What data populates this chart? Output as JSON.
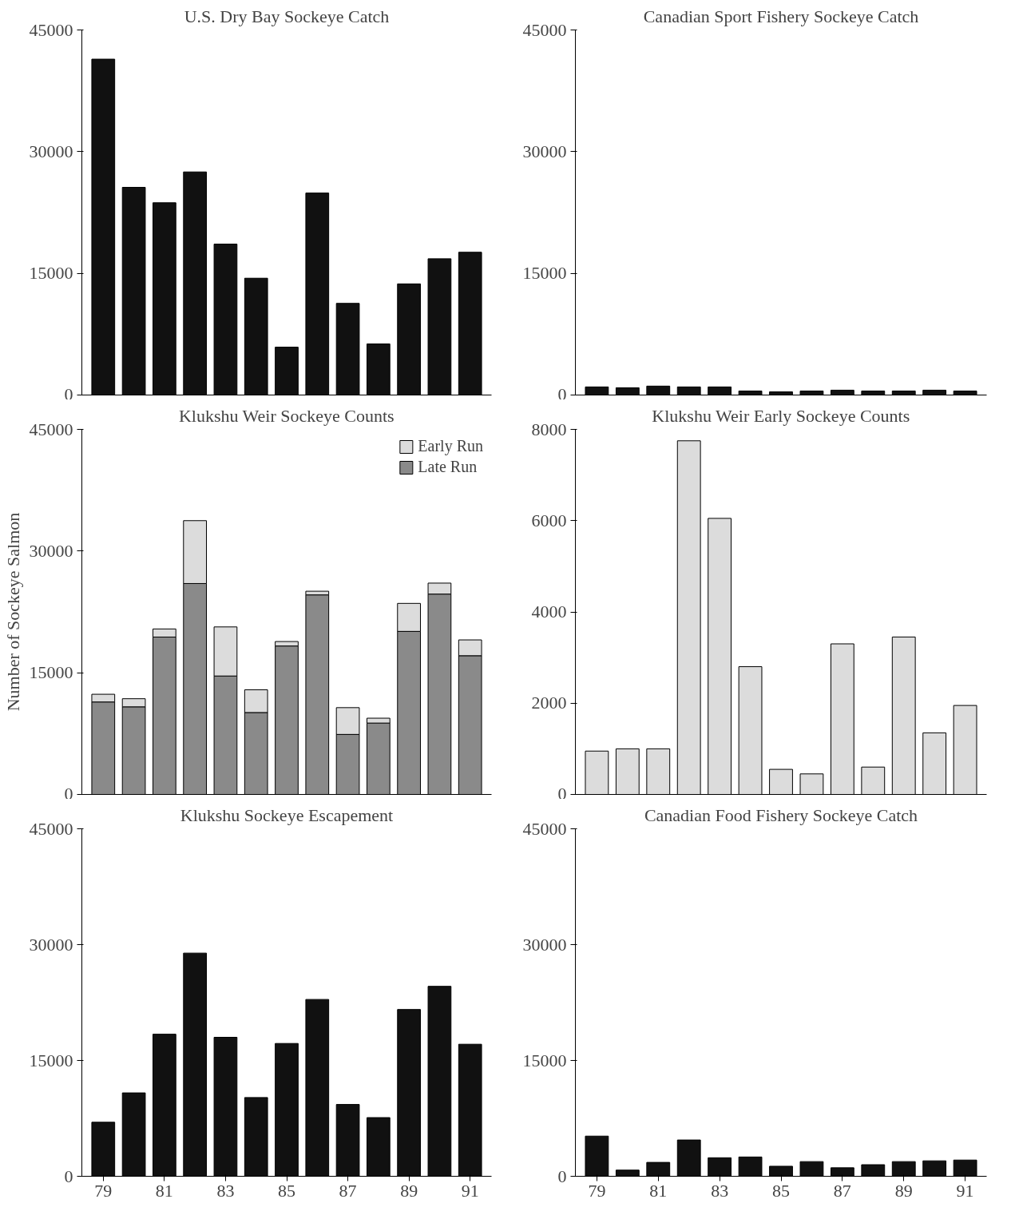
{
  "chart_data": [
    {
      "type": "bar",
      "title": "U.S. Dry Bay Sockeye Catch",
      "x": [
        79,
        80,
        81,
        82,
        83,
        84,
        85,
        86,
        87,
        88,
        89,
        90,
        91
      ],
      "xlim": [
        78.3,
        91.7
      ],
      "xticks": [
        79,
        81,
        83,
        85,
        87,
        89,
        91
      ],
      "ylim": [
        0,
        45000
      ],
      "yticks": [
        0,
        15000,
        30000,
        45000
      ],
      "tick_labels": "y",
      "values": [
        41400,
        25600,
        23700,
        27500,
        18600,
        14400,
        5900,
        24900,
        11300,
        6300,
        13700,
        16800,
        17600
      ],
      "color": "#111111"
    },
    {
      "type": "bar",
      "title": "Canadian Sport Fishery Sockeye Catch",
      "x": [
        79,
        80,
        81,
        82,
        83,
        84,
        85,
        86,
        87,
        88,
        89,
        90,
        91
      ],
      "xlim": [
        78.3,
        91.7
      ],
      "xticks": [
        79,
        81,
        83,
        85,
        87,
        89,
        91
      ],
      "ylim": [
        0,
        45000
      ],
      "yticks": [
        0,
        15000,
        30000,
        45000
      ],
      "tick_labels": "y",
      "values": [
        1000,
        900,
        1100,
        1000,
        1000,
        500,
        400,
        500,
        600,
        500,
        500,
        600,
        500
      ],
      "color": "#111111"
    },
    {
      "type": "bar",
      "title": "Klukshu Weir Sockeye Counts",
      "ylabel": "Number of Sockeye Salmon",
      "x": [
        79,
        80,
        81,
        82,
        83,
        84,
        85,
        86,
        87,
        88,
        89,
        90,
        91
      ],
      "xlim": [
        78.3,
        91.7
      ],
      "xticks": [
        79,
        81,
        83,
        85,
        87,
        89,
        91
      ],
      "ylim": [
        0,
        45000
      ],
      "yticks": [
        0,
        15000,
        30000,
        45000
      ],
      "tick_labels": "y",
      "stacked": true,
      "legend": "top right",
      "series": [
        {
          "name": "Late Run",
          "color": "#8a8a8a",
          "values": [
            11400,
            10800,
            19400,
            26000,
            14600,
            10100,
            18300,
            24600,
            7400,
            8800,
            20100,
            24700,
            17100
          ]
        },
        {
          "name": "Early Run",
          "color": "#dcdcdc",
          "values": [
            950,
            1000,
            1000,
            7750,
            6050,
            2800,
            550,
            450,
            3300,
            600,
            3450,
            1350,
            1950
          ]
        }
      ]
    },
    {
      "type": "bar",
      "title": "Klukshu Weir Early Sockeye Counts",
      "x": [
        79,
        80,
        81,
        82,
        83,
        84,
        85,
        86,
        87,
        88,
        89,
        90,
        91
      ],
      "xlim": [
        78.3,
        91.7
      ],
      "xticks": [
        79,
        81,
        83,
        85,
        87,
        89,
        91
      ],
      "ylim": [
        0,
        8000
      ],
      "yticks": [
        0,
        2000,
        4000,
        6000,
        8000
      ],
      "tick_labels": "y",
      "values": [
        950,
        1000,
        1000,
        7750,
        6050,
        2800,
        550,
        450,
        3300,
        600,
        3450,
        1350,
        1950
      ],
      "color": "#dcdcdc"
    },
    {
      "type": "bar",
      "title": "Klukshu Sockeye Escapement",
      "x": [
        79,
        80,
        81,
        82,
        83,
        84,
        85,
        86,
        87,
        88,
        89,
        90,
        91
      ],
      "xlim": [
        78.3,
        91.7
      ],
      "xticks": [
        79,
        81,
        83,
        85,
        87,
        89,
        91
      ],
      "ylim": [
        0,
        45000
      ],
      "yticks": [
        0,
        15000,
        30000,
        45000
      ],
      "values": [
        7000,
        10800,
        18400,
        28900,
        18000,
        10200,
        17200,
        22900,
        9300,
        7600,
        21600,
        24600,
        17100
      ],
      "color": "#111111"
    },
    {
      "type": "bar",
      "title": "Canadian Food Fishery Sockeye Catch",
      "x": [
        79,
        80,
        81,
        82,
        83,
        84,
        85,
        86,
        87,
        88,
        89,
        90,
        91
      ],
      "xlim": [
        78.3,
        91.7
      ],
      "xticks": [
        79,
        81,
        83,
        85,
        87,
        89,
        91
      ],
      "ylim": [
        0,
        45000
      ],
      "yticks": [
        0,
        15000,
        30000,
        45000
      ],
      "values": [
        5200,
        800,
        1800,
        4700,
        2400,
        2500,
        1300,
        1900,
        1100,
        1500,
        1900,
        2000,
        2100
      ],
      "color": "#111111"
    }
  ]
}
